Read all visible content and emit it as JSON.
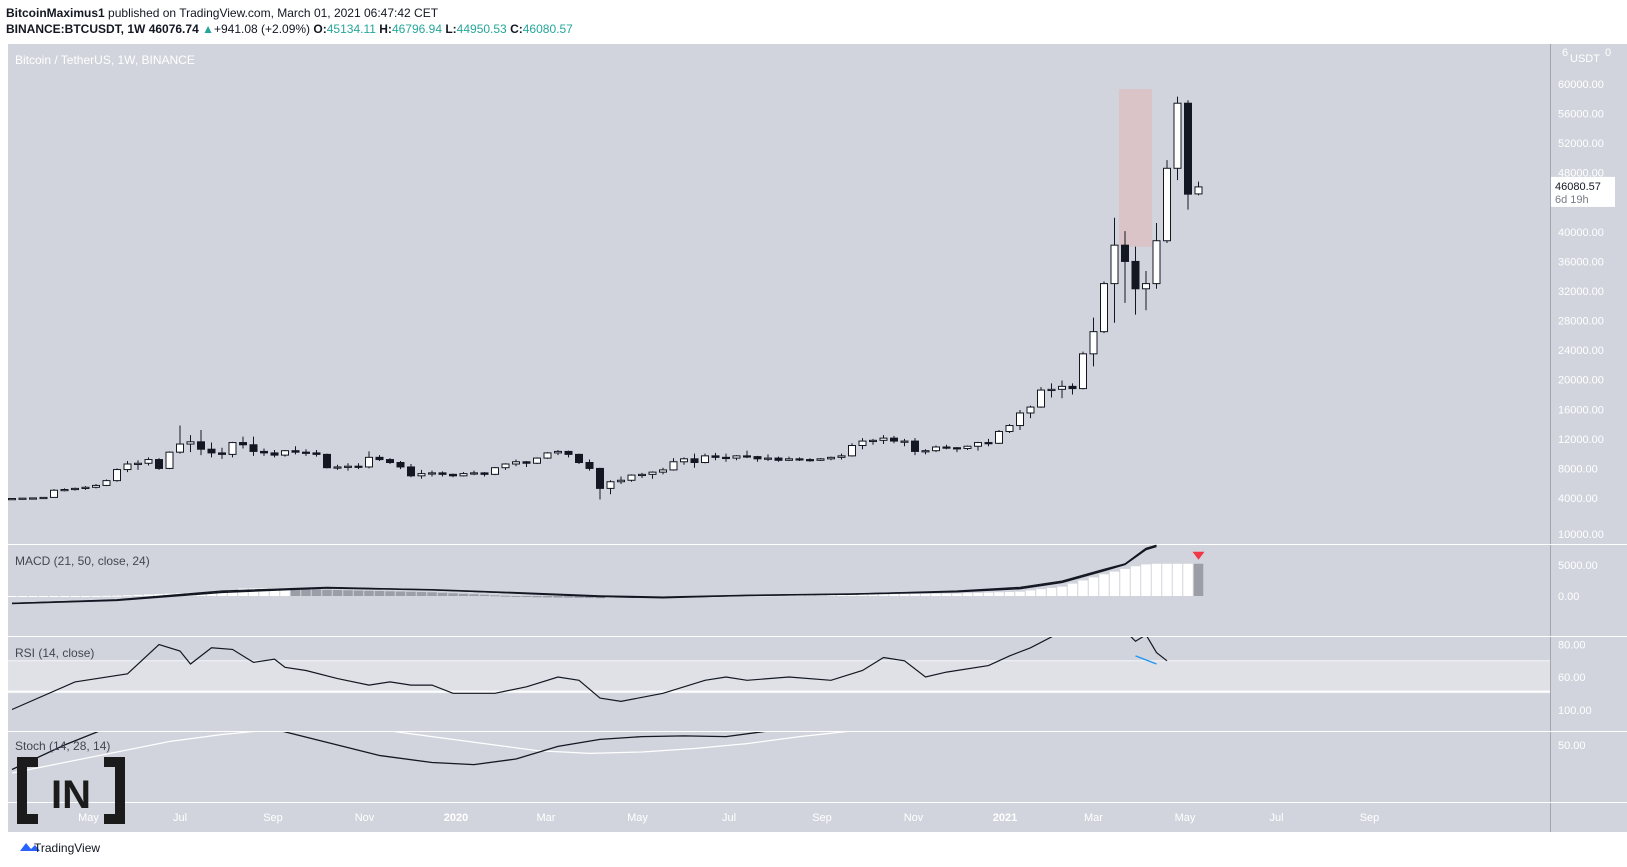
{
  "header": {
    "author": "BitcoinMaximus1",
    "published_text": "published on TradingView.com, March 01, 2021 06:47:42 CET",
    "symbol": "BINANCE:BTCUSDT, 1W",
    "last": "46076.74",
    "change_arrow": "▲",
    "change": "+941.08 (+2.09%)",
    "open_label": "O:",
    "open": "45134.11",
    "high_label": "H:",
    "high": "46796.94",
    "low_label": "L:",
    "low": "44950.53",
    "close_label": "C:",
    "close": "46080.57"
  },
  "main_pane_title": "Bitcoin / TetherUS, 1W, BINANCE",
  "price_axis": {
    "currency": "USDT",
    "top_ticks": [
      "6",
      "0"
    ],
    "ticks": [
      {
        "v": 60000,
        "label": "60000.00"
      },
      {
        "v": 56000,
        "label": "56000.00"
      },
      {
        "v": 52000,
        "label": "52000.00"
      },
      {
        "v": 48000,
        "label": "48000.00"
      },
      {
        "v": 40000,
        "label": "40000.00"
      },
      {
        "v": 36000,
        "label": "36000.00"
      },
      {
        "v": 32000,
        "label": "32000.00"
      },
      {
        "v": 28000,
        "label": "28000.00"
      },
      {
        "v": 24000,
        "label": "24000.00"
      },
      {
        "v": 20000,
        "label": "20000.00"
      },
      {
        "v": 16000,
        "label": "16000.00"
      },
      {
        "v": 12000,
        "label": "12000.00"
      },
      {
        "v": 8000,
        "label": "8000.00"
      },
      {
        "v": 4000,
        "label": "4000.00"
      }
    ],
    "last_price_label": "46080.57",
    "countdown_label": "6d 19h",
    "last_price": 46080.57
  },
  "macd": {
    "title": "MACD (21, 50, close, 24)",
    "ticks": [
      {
        "v": 10000,
        "label": "10000.00"
      },
      {
        "v": 5000,
        "label": "5000.00"
      },
      {
        "v": 0,
        "label": "0.00"
      }
    ]
  },
  "rsi": {
    "title": "RSI (14, close)",
    "ticks": [
      {
        "v": 80,
        "label": "80.00"
      },
      {
        "v": 60,
        "label": "60.00"
      }
    ]
  },
  "stoch": {
    "title": "Stoch (14, 28, 14)",
    "ticks": [
      {
        "v": 100,
        "label": "100.00"
      },
      {
        "v": 50,
        "label": "50.00"
      }
    ]
  },
  "time_axis": [
    "May",
    "Jul",
    "Sep",
    "Nov",
    "2020",
    "Mar",
    "May",
    "Jul",
    "Sep",
    "Nov",
    "2021",
    "Mar",
    "May",
    "Jul",
    "Sep"
  ],
  "time_axis_bold": [
    "2020",
    "2021"
  ],
  "watermark": "TradingView",
  "logo_text": "IN",
  "colors": {
    "pane_bg": "#d1d4dc",
    "candle_up": "#ffffff",
    "candle_down": "#131722",
    "highlight": "#e2b6b6",
    "rsi_band": "#dfe1e7",
    "macd_hist_up": "#ffffff",
    "macd_hist_down": "#9b9ea6",
    "arrow": "#f23645",
    "trend": "#2196f3"
  },
  "chart_data": {
    "type": "candlestick",
    "interval": "1W",
    "x_start": "2019-03-11",
    "weekly_ohlc": [
      [
        3900,
        3960,
        3860,
        3930
      ],
      [
        3930,
        4000,
        3900,
        3980
      ],
      [
        3980,
        4020,
        3940,
        4010
      ],
      [
        4010,
        4100,
        3980,
        4080
      ],
      [
        4080,
        5200,
        4050,
        5050
      ],
      [
        5050,
        5300,
        4900,
        5150
      ],
      [
        5150,
        5400,
        5000,
        5300
      ],
      [
        5300,
        5600,
        5100,
        5450
      ],
      [
        5450,
        5900,
        5300,
        5700
      ],
      [
        5700,
        6500,
        5600,
        6350
      ],
      [
        6350,
        8000,
        6200,
        7850
      ],
      [
        7850,
        9000,
        7500,
        8600
      ],
      [
        8600,
        9100,
        7800,
        8700
      ],
      [
        8700,
        9500,
        8400,
        9200
      ],
      [
        9200,
        9400,
        7800,
        8000
      ],
      [
        8000,
        10300,
        7900,
        10200
      ],
      [
        10200,
        13800,
        10000,
        11300
      ],
      [
        11300,
        12500,
        10200,
        11600
      ],
      [
        11600,
        13200,
        9800,
        10600
      ],
      [
        10600,
        11500,
        9500,
        10100
      ],
      [
        10100,
        10800,
        9300,
        9900
      ],
      [
        9900,
        11600,
        9500,
        11500
      ],
      [
        11500,
        12300,
        10700,
        11200
      ],
      [
        11200,
        12300,
        9700,
        10300
      ],
      [
        10300,
        10700,
        9700,
        10100
      ],
      [
        10100,
        10500,
        9500,
        9800
      ],
      [
        9800,
        10500,
        9600,
        10400
      ],
      [
        10400,
        11000,
        9900,
        10200
      ],
      [
        10200,
        10600,
        9700,
        10100
      ],
      [
        10100,
        10500,
        9600,
        9900
      ],
      [
        9900,
        10000,
        8000,
        8100
      ],
      [
        8100,
        8500,
        7800,
        8200
      ],
      [
        8200,
        8700,
        7700,
        8300
      ],
      [
        8300,
        8700,
        7900,
        8200
      ],
      [
        8200,
        10300,
        8000,
        9500
      ],
      [
        9500,
        9800,
        9000,
        9200
      ],
      [
        9200,
        9400,
        8600,
        8800
      ],
      [
        8800,
        9000,
        7900,
        8200
      ],
      [
        8200,
        8600,
        6800,
        7000
      ],
      [
        7000,
        7800,
        6600,
        7300
      ],
      [
        7300,
        7700,
        6900,
        7400
      ],
      [
        7400,
        7600,
        6900,
        7200
      ],
      [
        7200,
        7300,
        6800,
        7000
      ],
      [
        7000,
        7500,
        6900,
        7300
      ],
      [
        7300,
        7700,
        7100,
        7400
      ],
      [
        7400,
        7500,
        6900,
        7200
      ],
      [
        7200,
        8200,
        7100,
        8100
      ],
      [
        8100,
        8700,
        7800,
        8600
      ],
      [
        8600,
        9200,
        8300,
        8900
      ],
      [
        8900,
        9000,
        8200,
        8700
      ],
      [
        8700,
        9500,
        8600,
        9400
      ],
      [
        9400,
        10200,
        9300,
        10100
      ],
      [
        10100,
        10500,
        9800,
        10300
      ],
      [
        10300,
        10400,
        9500,
        9900
      ],
      [
        9900,
        10000,
        8600,
        8800
      ],
      [
        8800,
        9200,
        7700,
        8000
      ],
      [
        8000,
        8100,
        3800,
        5300
      ],
      [
        5300,
        6400,
        4500,
        6200
      ],
      [
        6200,
        6900,
        5900,
        6400
      ],
      [
        6400,
        7200,
        6200,
        7100
      ],
      [
        7100,
        7400,
        6700,
        7200
      ],
      [
        7200,
        7600,
        6600,
        7500
      ],
      [
        7500,
        8100,
        7200,
        7800
      ],
      [
        7800,
        9400,
        7700,
        8900
      ],
      [
        8900,
        9500,
        8500,
        9300
      ],
      [
        9300,
        10000,
        8100,
        8800
      ],
      [
        8800,
        10000,
        8700,
        9700
      ],
      [
        9700,
        10100,
        9100,
        9500
      ],
      [
        9500,
        10000,
        8900,
        9400
      ],
      [
        9400,
        9800,
        9100,
        9700
      ],
      [
        9700,
        10400,
        9400,
        9600
      ],
      [
        9600,
        9700,
        8900,
        9300
      ],
      [
        9300,
        9900,
        9000,
        9400
      ],
      [
        9400,
        9600,
        8900,
        9100
      ],
      [
        9100,
        9600,
        9000,
        9300
      ],
      [
        9300,
        9500,
        9000,
        9200
      ],
      [
        9200,
        9400,
        8900,
        9100
      ],
      [
        9100,
        9400,
        9000,
        9300
      ],
      [
        9300,
        9600,
        9100,
        9500
      ],
      [
        9500,
        10000,
        9200,
        9700
      ],
      [
        9700,
        11400,
        9600,
        11100
      ],
      [
        11100,
        12100,
        10600,
        11700
      ],
      [
        11700,
        12000,
        11200,
        11800
      ],
      [
        11800,
        12500,
        11300,
        12100
      ],
      [
        12100,
        12400,
        11400,
        11700
      ],
      [
        11700,
        12000,
        11000,
        11700
      ],
      [
        11700,
        12100,
        9800,
        10300
      ],
      [
        10300,
        10600,
        9900,
        10400
      ],
      [
        10400,
        11100,
        10200,
        10900
      ],
      [
        10900,
        11200,
        10600,
        10800
      ],
      [
        10800,
        10900,
        10200,
        10700
      ],
      [
        10700,
        11100,
        10500,
        11000
      ],
      [
        11000,
        11600,
        10400,
        11500
      ],
      [
        11500,
        12000,
        11000,
        11400
      ],
      [
        11400,
        13200,
        11300,
        13000
      ],
      [
        13000,
        14000,
        12800,
        13800
      ],
      [
        13800,
        15900,
        13200,
        15500
      ],
      [
        15500,
        16500,
        14800,
        16300
      ],
      [
        16300,
        19000,
        16200,
        18600
      ],
      [
        18600,
        19500,
        17600,
        18700
      ],
      [
        18700,
        19900,
        17500,
        19100
      ],
      [
        19100,
        19500,
        18000,
        18800
      ],
      [
        18800,
        23800,
        18700,
        23500
      ],
      [
        23500,
        28400,
        21800,
        26500
      ],
      [
        26500,
        33300,
        26300,
        33000
      ],
      [
        33000,
        41900,
        27700,
        38200
      ],
      [
        38200,
        40100,
        30400,
        36000
      ],
      [
        36000,
        38000,
        28800,
        32300
      ],
      [
        32300,
        34700,
        29400,
        33000
      ],
      [
        33000,
        41200,
        32300,
        38800
      ],
      [
        38800,
        49700,
        38500,
        48600
      ],
      [
        48600,
        58300,
        47000,
        57400
      ],
      [
        57400,
        57800,
        43000,
        45100
      ],
      [
        45134.11,
        46796.94,
        44950.53,
        46080.57
      ]
    ],
    "highlight_range": {
      "start_week": 106,
      "end_week": 108,
      "low": 38000,
      "high": 59300
    },
    "macd_line": [
      [
        0,
        -1200
      ],
      [
        10,
        -600
      ],
      [
        20,
        800
      ],
      [
        30,
        1400
      ],
      [
        40,
        1000
      ],
      [
        50,
        300
      ],
      [
        56,
        -100
      ],
      [
        62,
        -300
      ],
      [
        70,
        100
      ],
      [
        80,
        300
      ],
      [
        90,
        800
      ],
      [
        96,
        1400
      ],
      [
        100,
        2400
      ],
      [
        104,
        4300
      ],
      [
        106,
        5200
      ],
      [
        108,
        7700
      ],
      [
        109,
        8200
      ]
    ],
    "macd_signal": [
      [
        0,
        -1200
      ],
      [
        10,
        -700
      ],
      [
        20,
        600
      ],
      [
        30,
        1300
      ],
      [
        40,
        1000
      ],
      [
        50,
        400
      ],
      [
        56,
        0
      ],
      [
        62,
        -200
      ],
      [
        70,
        100
      ],
      [
        80,
        300
      ],
      [
        90,
        700
      ],
      [
        96,
        1200
      ],
      [
        100,
        2200
      ],
      [
        104,
        4100
      ],
      [
        106,
        5100
      ],
      [
        108,
        7500
      ],
      [
        109,
        8000
      ]
    ],
    "macd_histogram": [
      [
        0,
        -150
      ],
      [
        10,
        50
      ],
      [
        20,
        700
      ],
      [
        22,
        1200
      ],
      [
        26,
        1300
      ],
      [
        30,
        1000
      ],
      [
        40,
        600
      ],
      [
        50,
        -200
      ],
      [
        56,
        -350
      ],
      [
        62,
        -150
      ],
      [
        70,
        100
      ],
      [
        80,
        200
      ],
      [
        85,
        300
      ],
      [
        90,
        400
      ],
      [
        96,
        700
      ],
      [
        100,
        1500
      ],
      [
        104,
        3500
      ],
      [
        107,
        4800
      ],
      [
        108,
        5100
      ],
      [
        109,
        5200
      ]
    ],
    "rsi": [
      [
        0,
        40
      ],
      [
        6,
        57
      ],
      [
        11,
        62
      ],
      [
        13,
        74
      ],
      [
        14,
        80
      ],
      [
        16,
        76
      ],
      [
        17,
        68
      ],
      [
        19,
        78
      ],
      [
        21,
        77
      ],
      [
        23,
        69
      ],
      [
        25,
        71
      ],
      [
        26,
        66
      ],
      [
        28,
        64
      ],
      [
        31,
        59
      ],
      [
        34,
        55
      ],
      [
        36,
        57
      ],
      [
        38,
        55
      ],
      [
        40,
        55
      ],
      [
        42,
        50
      ],
      [
        46,
        50
      ],
      [
        49,
        54
      ],
      [
        52,
        60
      ],
      [
        54,
        58
      ],
      [
        56,
        47
      ],
      [
        58,
        45
      ],
      [
        62,
        50
      ],
      [
        66,
        58
      ],
      [
        68,
        60
      ],
      [
        70,
        58
      ],
      [
        74,
        60
      ],
      [
        78,
        58
      ],
      [
        81,
        64
      ],
      [
        83,
        72
      ],
      [
        85,
        70
      ],
      [
        87,
        60
      ],
      [
        89,
        63
      ],
      [
        93,
        67
      ],
      [
        95,
        73
      ],
      [
        97,
        78
      ],
      [
        100,
        88
      ],
      [
        102,
        86
      ],
      [
        104,
        92
      ],
      [
        105,
        95
      ],
      [
        107,
        82
      ],
      [
        108,
        86
      ],
      [
        109,
        75
      ],
      [
        110,
        70
      ]
    ],
    "rsi_trendline": [
      [
        107,
        73
      ],
      [
        109,
        68
      ]
    ],
    "stoch_k": [
      [
        0,
        15
      ],
      [
        5,
        50
      ],
      [
        10,
        80
      ],
      [
        14,
        95
      ],
      [
        18,
        90
      ],
      [
        23,
        80
      ],
      [
        27,
        65
      ],
      [
        31,
        50
      ],
      [
        35,
        35
      ],
      [
        40,
        25
      ],
      [
        44,
        22
      ],
      [
        48,
        30
      ],
      [
        52,
        48
      ],
      [
        56,
        58
      ],
      [
        60,
        62
      ],
      [
        64,
        63
      ],
      [
        68,
        62
      ],
      [
        72,
        70
      ],
      [
        76,
        82
      ],
      [
        80,
        85
      ],
      [
        84,
        78
      ],
      [
        88,
        72
      ],
      [
        92,
        73
      ],
      [
        96,
        74
      ],
      [
        100,
        78
      ],
      [
        104,
        85
      ],
      [
        108,
        86
      ],
      [
        110,
        84
      ]
    ],
    "stoch_d": [
      [
        0,
        10
      ],
      [
        5,
        25
      ],
      [
        10,
        40
      ],
      [
        15,
        55
      ],
      [
        20,
        65
      ],
      [
        25,
        72
      ],
      [
        30,
        75
      ],
      [
        35,
        72
      ],
      [
        40,
        62
      ],
      [
        45,
        52
      ],
      [
        50,
        42
      ],
      [
        55,
        38
      ],
      [
        60,
        40
      ],
      [
        65,
        45
      ],
      [
        70,
        52
      ],
      [
        75,
        62
      ],
      [
        80,
        70
      ],
      [
        85,
        74
      ],
      [
        90,
        73
      ],
      [
        95,
        72
      ],
      [
        100,
        73
      ],
      [
        105,
        74
      ],
      [
        110,
        74
      ]
    ]
  }
}
